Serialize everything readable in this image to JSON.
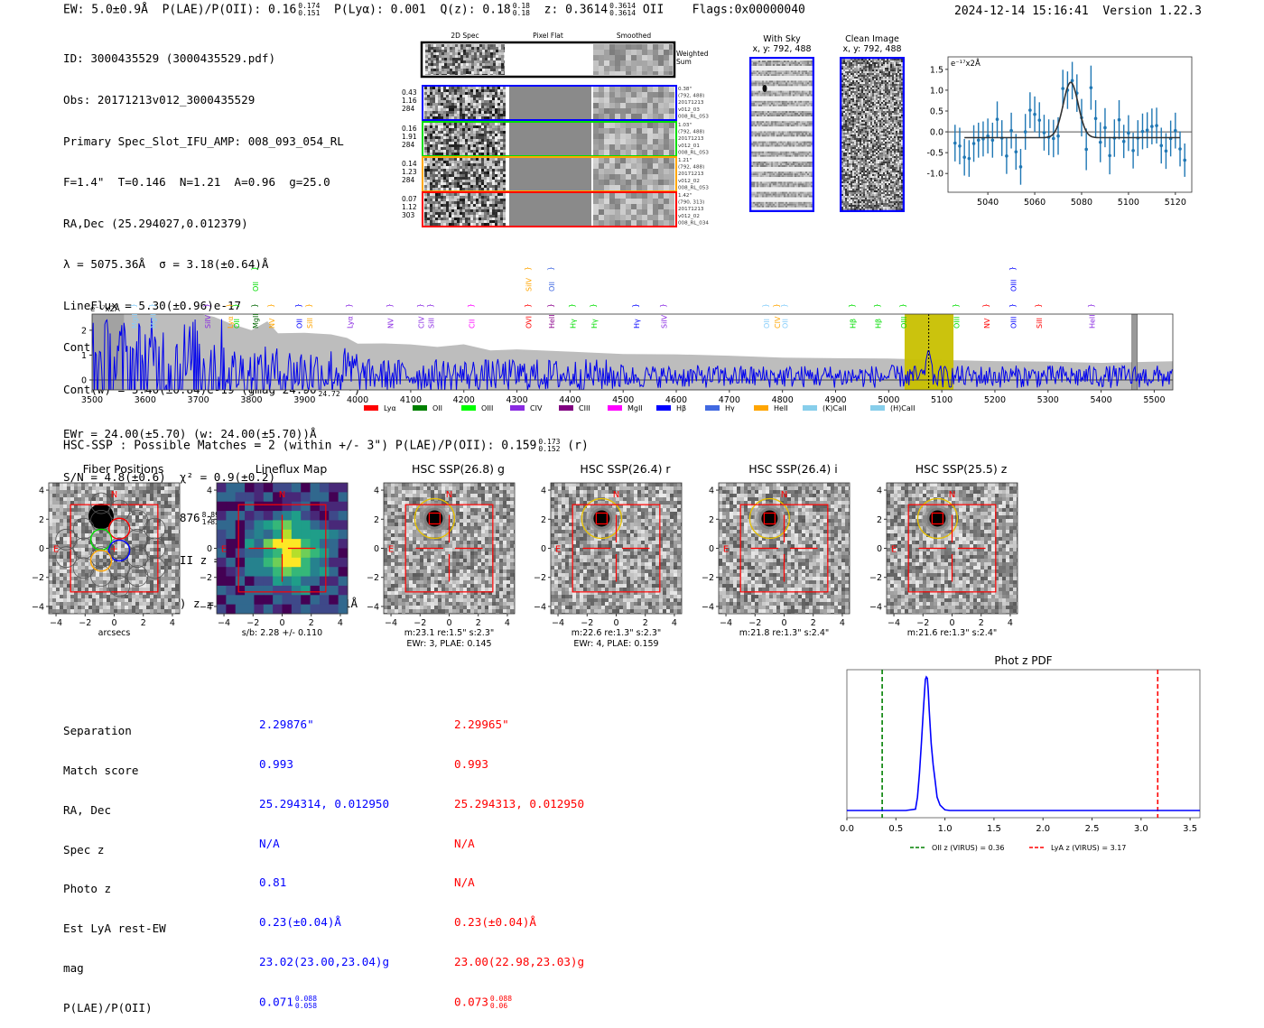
{
  "header": {
    "ew": "EW: 5.0±0.9Å",
    "plae_label": "P(LAE)/P(OII): 0.16",
    "plae_hi": "0.174",
    "plae_lo": "0.151",
    "plya": "P(Lyα): 0.001",
    "qz_label": "Q(z): 0.18",
    "qz_hi": "0.18",
    "qz_lo": "0.18",
    "z_label": "z: 0.3614",
    "z_hi": "0.3614",
    "z_lo": "0.3614",
    "z_line": "OII",
    "flags": "Flags:0x00000040",
    "timestamp": "2024-12-14 15:16:41",
    "version": "Version 1.22.3"
  },
  "info": {
    "lines": [
      "ID: 3000435529 (3000435529.pdf)",
      "Obs: 20171213v012_3000435529",
      "Primary Spec_Slot_IFU_AMP: 008_093_054_RL",
      "F=1.4\"  T=0.146  N=1.21  A=0.96  g=25.0",
      "RA,Dec (25.294027,0.012379)",
      "λ = 5075.36Å  σ = 3.18(±0.64)Å",
      "LineFlux = 5.30(±0.96)e-17",
      "Cont(n) = -7.00(±2.50)e-19"
    ],
    "contw": "Cont(w) = 5.40(±0.84)e-19 (gmag 24.90",
    "contw_hi": "25.07",
    "contw_lo": "24.72",
    "contw_tail": " *)",
    "ewr": "EWr = 24.00(±5.70) (w: 24.00(±5.70))Å",
    "sn": "S/N = 4.8(±0.6)  χ² = 0.9(±0.2)",
    "plae": "P(LAE)/P(OII): 3.876",
    "plae_hi": "8.896",
    "plae_lo": "1.832",
    "lya": "LyA z = 3.1749  OII z = 0.3615",
    "civ": "Q(0.00) CIV (1549) z = 2.2757  EW r = 30.1Å"
  },
  "spec2d": {
    "columns": [
      "2D Spec",
      "Pixel Flat",
      "Smoothed"
    ],
    "weighted_label": [
      "Weighted",
      "Sum"
    ],
    "rows": [
      {
        "color": "#0000ff",
        "left": [
          "0.43",
          "1.16",
          "284"
        ],
        "right": [
          "0.38\"",
          "(792, 488)",
          "20171213",
          "v012_03",
          "008_RL_053"
        ]
      },
      {
        "color": "#00dd00",
        "left": [
          "0.16",
          "1.91",
          "284"
        ],
        "right": [
          "1.03\"",
          "(792, 488)",
          "20171213",
          "v012_01",
          "008_RL_053"
        ]
      },
      {
        "color": "#ffa500",
        "left": [
          "0.14",
          "1.23",
          "284"
        ],
        "right": [
          "1.21\"",
          "(792, 488)",
          "20171213",
          "v012_02",
          "008_RL_053"
        ]
      },
      {
        "color": "#ff0000",
        "left": [
          "0.07",
          "1.12",
          "303"
        ],
        "right": [
          "1.42\"",
          "(790, 313)",
          "20171213",
          "v012_02",
          "008_RL_034"
        ]
      }
    ]
  },
  "cutouts": {
    "with_sky": [
      "With Sky",
      "x, y: 792, 488"
    ],
    "clean": [
      "Clean Image",
      "x, y: 792, 488"
    ]
  },
  "chart_data": [
    {
      "id": "line-fit",
      "type": "scatter",
      "title": "",
      "unit_label": "e⁻¹⁷x2Å",
      "xlabel": "",
      "ylabel": "",
      "xlim": [
        5023,
        5127
      ],
      "ylim": [
        -1.45,
        1.8
      ],
      "xticks": [
        5040,
        5060,
        5080,
        5100,
        5120
      ],
      "yticks": [
        -1.0,
        -0.5,
        0.0,
        0.5,
        1.0,
        1.5
      ],
      "points": {
        "x": [
          5026,
          5028,
          5030,
          5032,
          5034,
          5036,
          5038,
          5040,
          5042,
          5044,
          5046,
          5048,
          5050,
          5052,
          5054,
          5056,
          5058,
          5060,
          5062,
          5064,
          5066,
          5068,
          5070,
          5072,
          5074,
          5076,
          5078,
          5080,
          5082,
          5084,
          5086,
          5088,
          5090,
          5092,
          5094,
          5096,
          5098,
          5100,
          5102,
          5104,
          5106,
          5108,
          5110,
          5112,
          5114,
          5116,
          5118,
          5120,
          5122,
          5124
        ],
        "y": [
          -0.27,
          -0.34,
          -0.61,
          -0.64,
          -0.28,
          -0.2,
          -0.17,
          -0.1,
          -0.2,
          0.3,
          -0.15,
          -0.58,
          0.03,
          -0.48,
          -0.84,
          0.0,
          0.52,
          0.42,
          0.28,
          -0.02,
          -0.13,
          -0.16,
          -0.1,
          1.04,
          1.0,
          1.23,
          0.93,
          0.34,
          -0.42,
          1.06,
          0.32,
          -0.25,
          0.1,
          -0.57,
          -0.15,
          0.29,
          -0.23,
          -0.03,
          -0.45,
          -0.15,
          0.01,
          0.04,
          0.13,
          0.15,
          -0.33,
          -0.46,
          -0.16,
          0.03,
          -0.41,
          -0.68
        ],
        "err": [
          0.44,
          0.44,
          0.44,
          0.44,
          0.44,
          0.42,
          0.42,
          0.42,
          0.42,
          0.43,
          0.43,
          0.43,
          0.43,
          0.43,
          0.43,
          0.43,
          0.43,
          0.43,
          0.43,
          0.43,
          0.43,
          0.45,
          0.45,
          0.45,
          0.45,
          0.45,
          0.45,
          0.45,
          0.5,
          0.53,
          0.44,
          0.48,
          0.47,
          0.45,
          0.45,
          0.47,
          0.4,
          0.43,
          0.43,
          0.43,
          0.43,
          0.43,
          0.43,
          0.43,
          0.43,
          0.43,
          0.43,
          0.43,
          0.42,
          0.4
        ]
      },
      "model": {
        "continuum": -0.14,
        "amplitude": 1.33,
        "center": 5075.36,
        "sigma": 3.18,
        "xrange": [
          5030,
          5122
        ]
      }
    },
    {
      "id": "full-spectrum",
      "type": "line",
      "unit_label": "e⁻¹⁷x2Å",
      "xlim": [
        3500,
        5535
      ],
      "ylim": [
        -0.4,
        2.65
      ],
      "xticks": [
        3500,
        3600,
        3700,
        3800,
        3900,
        4000,
        4100,
        4200,
        4300,
        4400,
        4500,
        4600,
        4700,
        4800,
        4900,
        5000,
        5100,
        5200,
        5300,
        5400,
        5500
      ],
      "yticks": [
        0,
        1,
        2
      ],
      "highlight_range": [
        5030,
        5122
      ],
      "line_marker": 5075.36,
      "masked_range": [
        3500,
        3560
      ],
      "masked_range2": [
        5458,
        5468
      ],
      "error_envelope": {
        "x": [
          3500,
          3560,
          3600,
          3650,
          3700,
          3730,
          3760,
          3800,
          3830,
          3850,
          3900,
          3950,
          3980,
          4000,
          4050,
          4100,
          4150,
          4200,
          4250,
          4300,
          4400,
          4500,
          4600,
          4700,
          4800,
          4900,
          5000,
          5100,
          5200,
          5300,
          5400,
          5535
        ],
        "y": [
          2.65,
          2.65,
          2.65,
          2.65,
          2.65,
          2.55,
          2.3,
          2.0,
          2.4,
          1.9,
          1.9,
          1.8,
          1.7,
          1.5,
          1.5,
          1.4,
          1.35,
          1.4,
          1.2,
          1.25,
          1.15,
          1.05,
          1.0,
          0.95,
          0.9,
          0.85,
          0.85,
          0.8,
          0.75,
          0.78,
          0.72,
          0.72
        ]
      },
      "line_labels": [
        {
          "name": "MgII",
          "x": 3580,
          "color": "#87cefa",
          "tier": 1
        },
        {
          "name": "MgII",
          "x": 3615,
          "color": "#87cefa",
          "tier": 1
        },
        {
          "name": "SiIV",
          "x": 3718,
          "color": "#8a2be2",
          "tier": 1
        },
        {
          "name": "Lyα",
          "x": 3760,
          "color": "#ffa500",
          "tier": 1
        },
        {
          "name": "OII",
          "x": 3772,
          "color": "#00dd00",
          "tier": 1
        },
        {
          "name": "MgII",
          "x": 3808,
          "color": "#006400",
          "tier": 1
        },
        {
          "name": "OII",
          "x": 3808,
          "color": "#00dd00",
          "tier": 0
        },
        {
          "name": "NV",
          "x": 3838,
          "color": "#ffa500",
          "tier": 1
        },
        {
          "name": "OII",
          "x": 3890,
          "color": "#0000ff",
          "tier": 1
        },
        {
          "name": "SiII",
          "x": 3910,
          "color": "#ffa500",
          "tier": 1
        },
        {
          "name": "Lyα",
          "x": 3985,
          "color": "#8a2be2",
          "tier": 1
        },
        {
          "name": "NV",
          "x": 4062,
          "color": "#8a2be2",
          "tier": 1
        },
        {
          "name": "CIV",
          "x": 4120,
          "color": "#8a2be2",
          "tier": 1
        },
        {
          "name": "SiII",
          "x": 4138,
          "color": "#8a2be2",
          "tier": 1
        },
        {
          "name": "CII",
          "x": 4215,
          "color": "#ff00ff",
          "tier": 1
        },
        {
          "name": "OVI",
          "x": 4322,
          "color": "#ff0000",
          "tier": 1
        },
        {
          "name": "SiIV",
          "x": 4322,
          "color": "#ffa500",
          "tier": 0
        },
        {
          "name": "HeII",
          "x": 4365,
          "color": "#8b008b",
          "tier": 1
        },
        {
          "name": "OII",
          "x": 4365,
          "color": "#4169e1",
          "tier": 0
        },
        {
          "name": "Hγ",
          "x": 4405,
          "color": "#00dd00",
          "tier": 1
        },
        {
          "name": "Hγ",
          "x": 4445,
          "color": "#00dd00",
          "tier": 1
        },
        {
          "name": "Hγ",
          "x": 4525,
          "color": "#0000ff",
          "tier": 1
        },
        {
          "name": "SiIV",
          "x": 4577,
          "color": "#8a2be2",
          "tier": 1
        },
        {
          "name": "OII",
          "x": 4770,
          "color": "#87cefa",
          "tier": 1
        },
        {
          "name": "CIV",
          "x": 4790,
          "color": "#ffa500",
          "tier": 1
        },
        {
          "name": "OII",
          "x": 4805,
          "color": "#87cefa",
          "tier": 1
        },
        {
          "name": "Hβ",
          "x": 4932,
          "color": "#00dd00",
          "tier": 1
        },
        {
          "name": "Hβ",
          "x": 4980,
          "color": "#00dd00",
          "tier": 1
        },
        {
          "name": "OIII",
          "x": 5028,
          "color": "#00dd00",
          "tier": 1
        },
        {
          "name": "OIII",
          "x": 5128,
          "color": "#00dd00",
          "tier": 1
        },
        {
          "name": "NV",
          "x": 5185,
          "color": "#ff0000",
          "tier": 1
        },
        {
          "name": "OIII",
          "x": 5235,
          "color": "#0000ff",
          "tier": 1
        },
        {
          "name": "OIII",
          "x": 5235,
          "color": "#0000ff",
          "tier": 0
        },
        {
          "name": "SiII",
          "x": 5283,
          "color": "#ff0000",
          "tier": 1
        },
        {
          "name": "HeII",
          "x": 5383,
          "color": "#8a2be2",
          "tier": 1
        }
      ],
      "legend": [
        {
          "label": "Lyα",
          "color": "#ff0000"
        },
        {
          "label": "OII",
          "color": "#008000"
        },
        {
          "label": "OIII",
          "color": "#00ff00"
        },
        {
          "label": "CIV",
          "color": "#8a2be2"
        },
        {
          "label": "CIII",
          "color": "#800080"
        },
        {
          "label": "MgII",
          "color": "#ff00ff"
        },
        {
          "label": "Hβ",
          "color": "#0000ff"
        },
        {
          "label": "Hγ",
          "color": "#4169e1"
        },
        {
          "label": "HeII",
          "color": "#ffa500"
        },
        {
          "label": "(K)CaII",
          "color": "#87ceeb"
        },
        {
          "label": "(H)CaII",
          "color": "#87ceeb"
        }
      ]
    },
    {
      "id": "photz-pdf",
      "type": "line",
      "title": "Phot z PDF",
      "xlim": [
        0,
        3.6
      ],
      "xticks": [
        0.0,
        0.5,
        1.0,
        1.5,
        2.0,
        2.5,
        3.0,
        3.5
      ],
      "pdf": {
        "x": [
          0,
          0.6,
          0.7,
          0.72,
          0.74,
          0.76,
          0.78,
          0.8,
          0.81,
          0.82,
          0.83,
          0.84,
          0.86,
          0.88,
          0.9,
          0.92,
          0.95,
          1.0,
          1.05,
          3.6
        ],
        "y": [
          0,
          0,
          0.01,
          0.1,
          0.28,
          0.5,
          0.75,
          0.98,
          1.0,
          0.99,
          0.9,
          0.75,
          0.5,
          0.34,
          0.22,
          0.1,
          0.04,
          0.005,
          0,
          0
        ]
      },
      "vlines": [
        {
          "x": 0.36,
          "color": "#008000",
          "label": "OII z (VIRUS) = 0.36"
        },
        {
          "x": 3.17,
          "color": "#ff0000",
          "label": "LyA z (VIRUS) = 3.17"
        }
      ]
    }
  ],
  "hsc": {
    "summary": "HSC-SSP : Possible Matches = 2 (within +/- 3\")  P(LAE)/P(OII): 0.159",
    "summary_hi": "0.173",
    "summary_lo": "0.152",
    "summary_tail": " (r)",
    "panels": [
      {
        "title": "Fiber Positions",
        "caption1": "arcsecs",
        "caption2": ""
      },
      {
        "title": "Lineflux Map",
        "caption1": "s/b: 2.28 +/- 0.110",
        "caption2": ""
      },
      {
        "title": "HSC SSP(26.8) g",
        "caption1": "m:23.1  re:1.5\"  s:2.3\"",
        "caption2": "EWr: 3, PLAE: 0.145"
      },
      {
        "title": "HSC SSP(26.4) r",
        "caption1": "m:22.6  re:1.3\"  s:2.3\"",
        "caption2": "EWr: 4, PLAE: 0.159"
      },
      {
        "title": "HSC SSP(26.4) i",
        "caption1": "m:21.8  re:1.3\"  s:2.4\"",
        "caption2": ""
      },
      {
        "title": "HSC SSP(25.5) z",
        "caption1": "m:21.6  re:1.3\"  s:2.4\"",
        "caption2": ""
      }
    ],
    "axis_ticks": [
      "-4",
      "-2",
      "0",
      "2",
      "4"
    ],
    "compass_n": "N",
    "compass_e": "E"
  },
  "matches": {
    "labels": [
      "Separation",
      "Match score",
      "RA, Dec",
      "Spec z",
      "Photo z",
      "Est LyA rest-EW",
      "mag",
      "P(LAE)/P(OII)"
    ],
    "col1": [
      "2.29876\"",
      "0.993",
      "25.294314, 0.012950",
      "N/A",
      "0.81",
      "0.23(±0.04)Å",
      "23.02(23.00,23.04)g",
      "0.071"
    ],
    "col1_plae_hi": "0.088",
    "col1_plae_lo": "0.058",
    "col2": [
      "2.29965\"",
      "0.993",
      "25.294313, 0.012950",
      "N/A",
      "N/A",
      "0.23(±0.04)Å",
      "23.00(22.98,23.03)g",
      "0.073"
    ],
    "col2_plae_hi": "0.088",
    "col2_plae_lo": "0.06"
  }
}
